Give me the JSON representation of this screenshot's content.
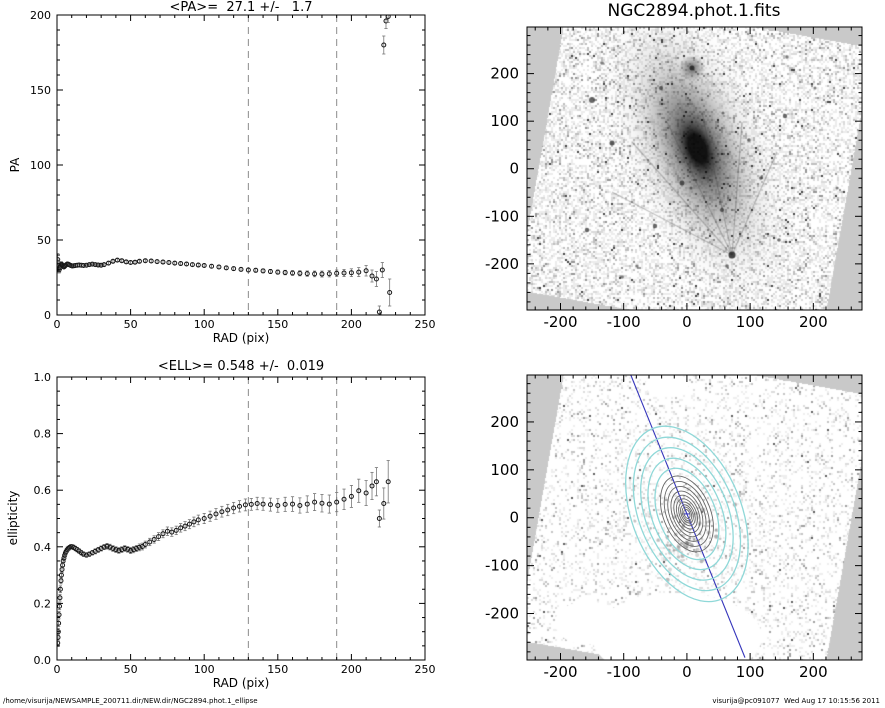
{
  "footer": {
    "left": "/home/visurija/NEWSAMPLE_200711.dir/NEW.dir/NGC2894.phot.1_ellipse",
    "right": "visurija@pc091077  Wed Aug 17 10:15:56 2011"
  },
  "chart_data": [
    {
      "id": "pa_profile",
      "type": "scatter",
      "title": "<PA>=  27.1 +/-   1.7",
      "xlabel": "RAD (pix)",
      "ylabel": "PA",
      "xlim": [
        0,
        250
      ],
      "ylim": [
        0,
        200
      ],
      "xticks": [
        0,
        50,
        100,
        150,
        200,
        250
      ],
      "xtick_labels": [
        "0",
        "50",
        "100",
        "150",
        "200",
        "250"
      ],
      "yticks": [
        0,
        50,
        100,
        150,
        200
      ],
      "ytick_labels": [
        "0",
        "50",
        "100",
        "150",
        "200"
      ],
      "xminor": 10,
      "yminor": 10,
      "vlines": [
        130,
        190
      ],
      "points": [
        [
          0.5,
          37,
          4
        ],
        [
          0.7,
          35,
          3
        ],
        [
          0.9,
          33,
          3
        ],
        [
          1.1,
          31,
          2.5
        ],
        [
          1.4,
          30,
          2
        ],
        [
          1.7,
          30.5,
          2
        ],
        [
          2,
          31.5,
          1.8
        ],
        [
          2.3,
          32.5,
          1.6
        ],
        [
          2.7,
          33.5,
          1.5
        ],
        [
          3,
          34,
          1.4
        ],
        [
          3.4,
          33.5,
          1.3
        ],
        [
          3.8,
          33,
          1.2
        ],
        [
          4.2,
          32.5,
          1.1
        ],
        [
          4.7,
          32,
          1
        ],
        [
          5.2,
          32.5,
          1
        ],
        [
          5.7,
          33,
          1
        ],
        [
          6.3,
          33.5,
          1
        ],
        [
          7,
          34,
          0.9
        ],
        [
          7.7,
          33.8,
          0.9
        ],
        [
          8.5,
          33.4,
          0.9
        ],
        [
          9.4,
          33,
          0.8
        ],
        [
          10.3,
          32.7,
          0.8
        ],
        [
          11.3,
          32.8,
          0.8
        ],
        [
          12.5,
          33,
          0.8
        ],
        [
          13.7,
          33.2,
          0.8
        ],
        [
          15,
          33.3,
          0.8
        ],
        [
          16.5,
          33.2,
          0.8
        ],
        [
          18,
          33,
          0.8
        ],
        [
          20,
          33.2,
          0.8
        ],
        [
          22,
          33.6,
          0.8
        ],
        [
          24,
          33.9,
          0.8
        ],
        [
          26,
          33.6,
          0.8
        ],
        [
          28,
          33.3,
          0.8
        ],
        [
          30,
          33.2,
          0.9
        ],
        [
          32,
          33.6,
          0.9
        ],
        [
          35,
          34.6,
          0.9
        ],
        [
          38,
          35.8,
          0.9
        ],
        [
          41,
          36.6,
          0.9
        ],
        [
          44,
          36.2,
          0.9
        ],
        [
          47,
          35.4,
          0.9
        ],
        [
          50,
          35,
          0.9
        ],
        [
          53,
          35.2,
          0.9
        ],
        [
          56,
          35.8,
          0.9
        ],
        [
          60,
          36.2,
          0.9
        ],
        [
          64,
          36,
          1
        ],
        [
          68,
          35.6,
          1
        ],
        [
          72,
          35.3,
          1
        ],
        [
          76,
          35,
          1
        ],
        [
          80,
          34.6,
          1
        ],
        [
          84,
          34.3,
          1
        ],
        [
          88,
          34,
          1
        ],
        [
          92,
          33.6,
          1
        ],
        [
          96,
          33.3,
          1
        ],
        [
          100,
          33,
          1
        ],
        [
          105,
          32.5,
          1.1
        ],
        [
          110,
          32,
          1.1
        ],
        [
          115,
          31.4,
          1.1
        ],
        [
          120,
          30.9,
          1.2
        ],
        [
          125,
          30.4,
          1.2
        ],
        [
          130,
          30,
          1.2
        ],
        [
          135,
          29.8,
          1.3
        ],
        [
          140,
          29.4,
          1.3
        ],
        [
          145,
          29,
          1.4
        ],
        [
          150,
          28.6,
          1.4
        ],
        [
          155,
          28.3,
          1.5
        ],
        [
          160,
          28,
          1.6
        ],
        [
          165,
          27.8,
          1.7
        ],
        [
          170,
          27.6,
          1.8
        ],
        [
          175,
          27.4,
          1.9
        ],
        [
          180,
          27.3,
          2
        ],
        [
          185,
          27.5,
          2.1
        ],
        [
          190,
          27.8,
          2.2
        ],
        [
          195,
          28,
          2.4
        ],
        [
          200,
          28.2,
          2.6
        ],
        [
          205,
          28.6,
          3
        ],
        [
          210,
          29.5,
          3.5
        ],
        [
          214,
          26,
          4
        ],
        [
          217,
          24,
          5
        ],
        [
          219,
          2,
          4
        ],
        [
          221,
          30,
          5
        ],
        [
          222,
          180,
          6
        ],
        [
          223.5,
          196,
          5
        ],
        [
          225,
          199,
          4
        ],
        [
          226,
          15,
          9
        ]
      ]
    },
    {
      "id": "ellipticity_profile",
      "type": "scatter",
      "title": "<ELL>= 0.548 +/-  0.019",
      "xlabel": "RAD (pix)",
      "ylabel": "ellipticity",
      "xlim": [
        0,
        250
      ],
      "ylim": [
        0.0,
        1.0
      ],
      "xticks": [
        0,
        50,
        100,
        150,
        200,
        250
      ],
      "xtick_labels": [
        "0",
        "50",
        "100",
        "150",
        "200",
        "250"
      ],
      "yticks": [
        0.0,
        0.2,
        0.4,
        0.6,
        0.8,
        1.0
      ],
      "ytick_labels": [
        "0.0",
        "0.2",
        "0.4",
        "0.6",
        "0.8",
        "1.0"
      ],
      "xminor": 10,
      "yminor": 0.05,
      "vlines": [
        130,
        190
      ],
      "points": [
        [
          0.5,
          0.06,
          0.012
        ],
        [
          0.7,
          0.08,
          0.012
        ],
        [
          0.9,
          0.1,
          0.012
        ],
        [
          1.1,
          0.13,
          0.012
        ],
        [
          1.4,
          0.16,
          0.012
        ],
        [
          1.7,
          0.19,
          0.012
        ],
        [
          2,
          0.22,
          0.012
        ],
        [
          2.3,
          0.25,
          0.012
        ],
        [
          2.7,
          0.28,
          0.011
        ],
        [
          3,
          0.3,
          0.011
        ],
        [
          3.4,
          0.32,
          0.011
        ],
        [
          3.8,
          0.335,
          0.01
        ],
        [
          4.2,
          0.35,
          0.01
        ],
        [
          4.7,
          0.36,
          0.01
        ],
        [
          5.2,
          0.37,
          0.009
        ],
        [
          5.7,
          0.378,
          0.009
        ],
        [
          6.3,
          0.384,
          0.009
        ],
        [
          7,
          0.39,
          0.009
        ],
        [
          7.7,
          0.394,
          0.008
        ],
        [
          8.5,
          0.397,
          0.008
        ],
        [
          9.4,
          0.4,
          0.008
        ],
        [
          10.3,
          0.4,
          0.008
        ],
        [
          11.3,
          0.398,
          0.008
        ],
        [
          12.5,
          0.394,
          0.008
        ],
        [
          13.7,
          0.39,
          0.008
        ],
        [
          15,
          0.385,
          0.008
        ],
        [
          16.5,
          0.379,
          0.008
        ],
        [
          18,
          0.374,
          0.008
        ],
        [
          20,
          0.371,
          0.008
        ],
        [
          22,
          0.374,
          0.008
        ],
        [
          24,
          0.379,
          0.008
        ],
        [
          26,
          0.384,
          0.009
        ],
        [
          28,
          0.389,
          0.009
        ],
        [
          30,
          0.394,
          0.009
        ],
        [
          32,
          0.399,
          0.009
        ],
        [
          34,
          0.402,
          0.01
        ],
        [
          36,
          0.399,
          0.01
        ],
        [
          38,
          0.394,
          0.01
        ],
        [
          40,
          0.39,
          0.01
        ],
        [
          42,
          0.387,
          0.01
        ],
        [
          44,
          0.39,
          0.01
        ],
        [
          46,
          0.394,
          0.01
        ],
        [
          48,
          0.391,
          0.01
        ],
        [
          50,
          0.387,
          0.011
        ],
        [
          52,
          0.39,
          0.011
        ],
        [
          54,
          0.394,
          0.011
        ],
        [
          56,
          0.398,
          0.012
        ],
        [
          58,
          0.401,
          0.012
        ],
        [
          60,
          0.408,
          0.012
        ],
        [
          63,
          0.417,
          0.013
        ],
        [
          66,
          0.426,
          0.013
        ],
        [
          69,
          0.436,
          0.014
        ],
        [
          72,
          0.446,
          0.014
        ],
        [
          75,
          0.455,
          0.015
        ],
        [
          78,
          0.452,
          0.015
        ],
        [
          81,
          0.458,
          0.015
        ],
        [
          84,
          0.467,
          0.015
        ],
        [
          87,
          0.473,
          0.016
        ],
        [
          90,
          0.48,
          0.016
        ],
        [
          93,
          0.488,
          0.017
        ],
        [
          96,
          0.495,
          0.017
        ],
        [
          100,
          0.5,
          0.018
        ],
        [
          104,
          0.508,
          0.018
        ],
        [
          108,
          0.516,
          0.019
        ],
        [
          112,
          0.524,
          0.019
        ],
        [
          116,
          0.53,
          0.02
        ],
        [
          120,
          0.537,
          0.02
        ],
        [
          124,
          0.543,
          0.02
        ],
        [
          128,
          0.548,
          0.021
        ],
        [
          132,
          0.55,
          0.021
        ],
        [
          136,
          0.553,
          0.022
        ],
        [
          140,
          0.551,
          0.022
        ],
        [
          145,
          0.549,
          0.023
        ],
        [
          150,
          0.546,
          0.024
        ],
        [
          155,
          0.55,
          0.025
        ],
        [
          160,
          0.551,
          0.026
        ],
        [
          165,
          0.546,
          0.027
        ],
        [
          170,
          0.551,
          0.029
        ],
        [
          175,
          0.558,
          0.03
        ],
        [
          180,
          0.554,
          0.031
        ],
        [
          185,
          0.551,
          0.032
        ],
        [
          190,
          0.558,
          0.034
        ],
        [
          195,
          0.568,
          0.036
        ],
        [
          200,
          0.578,
          0.039
        ],
        [
          205,
          0.598,
          0.041
        ],
        [
          210,
          0.59,
          0.044
        ],
        [
          214,
          0.615,
          0.048
        ],
        [
          217,
          0.63,
          0.05
        ],
        [
          219,
          0.5,
          0.03
        ],
        [
          222,
          0.553,
          0.055
        ],
        [
          225,
          0.63,
          0.075
        ]
      ]
    },
    {
      "id": "fits_image",
      "type": "heatmap",
      "title": "NGC2894.phot.1.fits",
      "xlim": [
        -253,
        277
      ],
      "ylim": [
        -297,
        298
      ],
      "xticks": [
        -200,
        -100,
        0,
        100,
        200
      ],
      "xtick_labels": [
        "-200",
        "-100",
        "0",
        "100",
        "200"
      ],
      "yticks": [
        -200,
        -100,
        0,
        100,
        200
      ],
      "ytick_labels": [
        "-200",
        "-100",
        "0",
        "100",
        "200"
      ],
      "minor": 20,
      "description": "Inverted grayscale FITS frame of NGC2894: dark elongated galaxy near centre, field stars, bright-star spikes near bottom, rotated chip footprint on grey background"
    },
    {
      "id": "fits_image_isophotes",
      "type": "heatmap",
      "title": "",
      "xlim": [
        -253,
        277
      ],
      "ylim": [
        -297,
        298
      ],
      "xticks": [
        -200,
        -100,
        0,
        100,
        200
      ],
      "xtick_labels": [
        "-200",
        "-100",
        "0",
        "100",
        "200"
      ],
      "yticks": [
        -200,
        -100,
        0,
        100,
        200
      ],
      "ytick_labels": [
        "-200",
        "-100",
        "0",
        "100",
        "200"
      ],
      "minor": 20,
      "overlay": {
        "isophote_center": [
          0,
          8
        ],
        "gray_isophotes_sma": [
          10,
          15,
          20,
          26,
          33,
          41,
          50,
          60,
          71,
          83
        ],
        "cyan_isophotes_sma": [
          100,
          122,
          145,
          168,
          192
        ],
        "axis_ratio": 0.45,
        "position_angle_deg": 22,
        "colors": {
          "gray": "#666666",
          "cyan": "#8fd8d8",
          "major_axis_line": "#3434bb"
        }
      },
      "description": "Same field with fitted elliptical isophotes (inner grey, outer cyan) and major-axis line"
    }
  ]
}
